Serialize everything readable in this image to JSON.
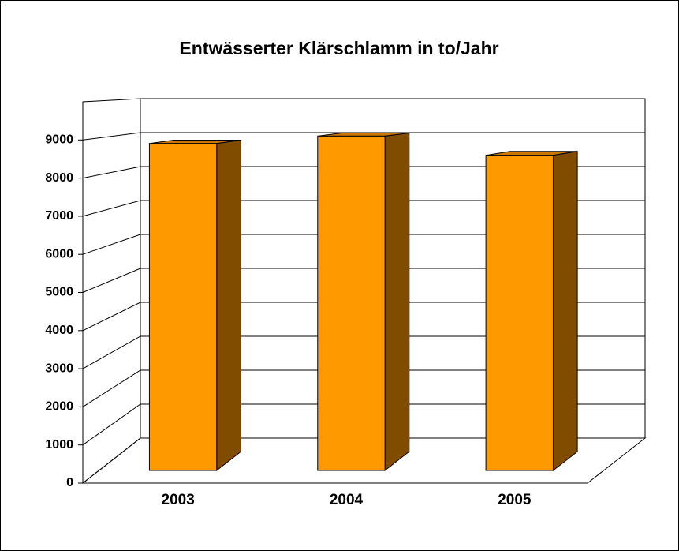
{
  "chart_data": {
    "type": "bar3d",
    "title": "Entwässerter Klärschlamm in to/Jahr",
    "categories": [
      "2003",
      "2004",
      "2005"
    ],
    "values": [
      8850,
      9050,
      8530
    ],
    "color": "#ff9900",
    "ylim": [
      0,
      10000
    ],
    "yticks": [
      0,
      1000,
      2000,
      3000,
      4000,
      5000,
      6000,
      7000,
      8000,
      9000
    ],
    "grid": true
  }
}
